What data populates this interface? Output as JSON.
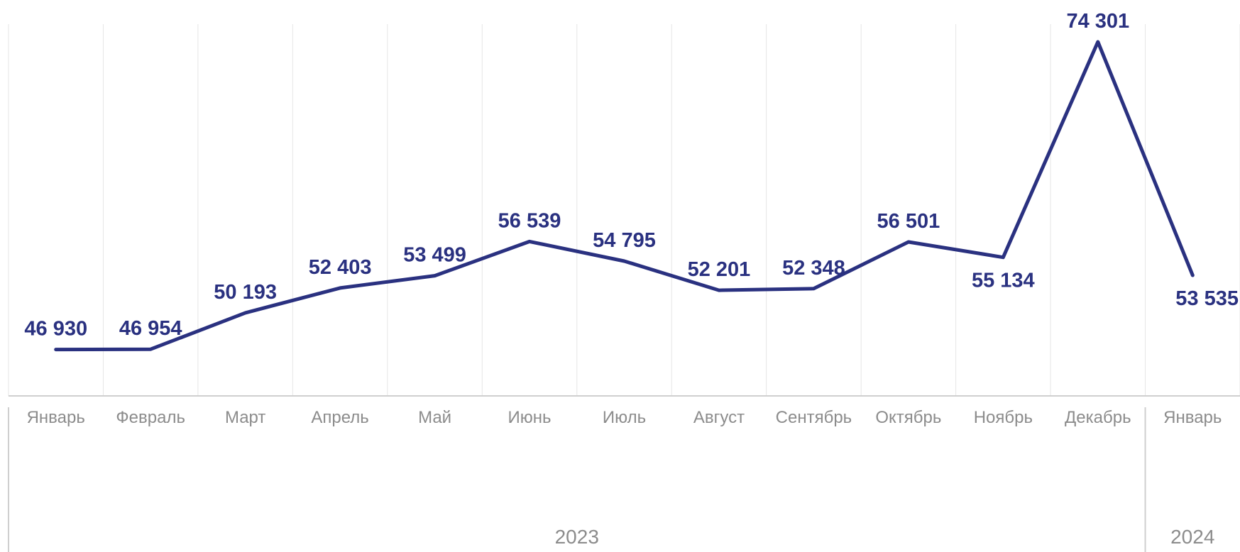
{
  "chart_data": {
    "type": "line",
    "categories": [
      "Январь",
      "Февраль",
      "Март",
      "Апрель",
      "Май",
      "Июнь",
      "Июль",
      "Август",
      "Сентябрь",
      "Октябрь",
      "Ноябрь",
      "Декабрь",
      "Январь"
    ],
    "years": [
      {
        "label": "2023",
        "start": 0,
        "end": 11
      },
      {
        "label": "2024",
        "start": 12,
        "end": 12
      }
    ],
    "series": [
      {
        "values": [
          46930,
          46954,
          50193,
          52403,
          53499,
          56539,
          54795,
          52201,
          52348,
          56501,
          55134,
          74301,
          53535
        ],
        "labels": [
          "46 930",
          "46 954",
          "50 193",
          "52 403",
          "53 499",
          "56 539",
          "54 795",
          "52 201",
          "52 348",
          "56 501",
          "55 134",
          "74 301",
          "53 535"
        ],
        "label_position": [
          "above",
          "above",
          "above",
          "above",
          "above",
          "above",
          "above",
          "above",
          "above",
          "above",
          "below",
          "above",
          "below"
        ]
      }
    ],
    "ylim": [
      39900,
      75500
    ],
    "grid": "vertical",
    "title": "",
    "xlabel": "",
    "ylabel": ""
  },
  "colors": {
    "line": "#2a3180",
    "label": "#2a3180",
    "grid": "#e6e6e6",
    "axis": "#cfcfcf",
    "tick_text": "#8c8c8c"
  }
}
